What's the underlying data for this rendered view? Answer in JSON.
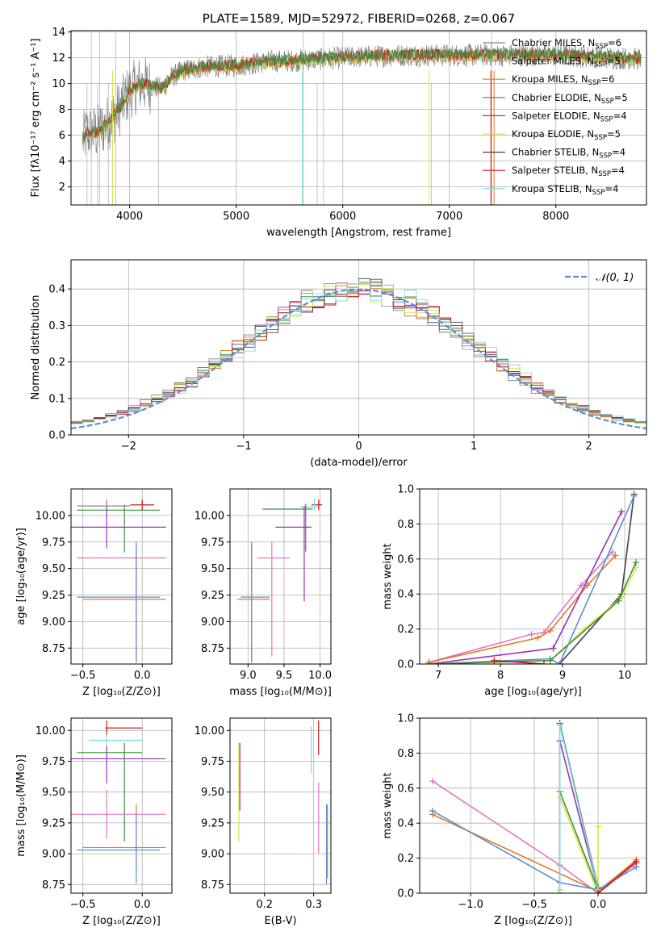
{
  "colors": {
    "chabrier_miles": "#808080",
    "salpeter_miles": "#9e9e9e",
    "kroupa_miles": "#e07b24",
    "chabrier_elodie": "#3f8f3f",
    "salpeter_elodie": "#9b30b8",
    "kroupa_elodie": "#d8e840",
    "chabrier_stelib": "#444444",
    "salpeter_stelib": "#c81818",
    "kroupa_stelib": "#7fdcdc",
    "normal": "#5b8fd6",
    "pink": "#e377c2",
    "blue": "#5b8fd6"
  },
  "chart_data": [
    {
      "id": "spectrum",
      "type": "line",
      "title": "PLATE=1589, MJD=52972, FIBERID=0268, z=0.067",
      "xlabel": "wavelength [Angstrom, rest frame]",
      "ylabel": "Flux [fλ10⁻¹⁷ erg cm⁻² s⁻¹ A⁻¹]",
      "xlim": [
        3450,
        8850
      ],
      "ylim": [
        0.6,
        14.1
      ],
      "xticks": [
        "4000",
        "5000",
        "6000",
        "7000",
        "8000"
      ],
      "yticks": [
        "2",
        "4",
        "6",
        "8",
        "10",
        "12",
        "14"
      ],
      "continuum": {
        "x": [
          3560,
          3600,
          3700,
          3800,
          3900,
          4000,
          4100,
          4200,
          4300,
          4400,
          4500,
          4700,
          5000,
          5300,
          5600,
          6000,
          6500,
          7000,
          7500,
          8000,
          8500,
          8800
        ],
        "y": [
          5.6,
          6.2,
          6.2,
          7.0,
          8.0,
          9.4,
          10.0,
          9.8,
          9.6,
          10.5,
          11.0,
          11.3,
          11.4,
          11.7,
          11.8,
          12.0,
          12.2,
          12.2,
          12.2,
          12.2,
          12.0,
          11.9
        ]
      },
      "legend": {
        "position": "right",
        "entries": [
          {
            "text": "Chabrier MILES, N",
            "sub": "SSP",
            "tail": "=6"
          },
          {
            "text": "Salpeter MILES, N",
            "sub": "SSP",
            "tail": "=5"
          },
          {
            "text": "Kroupa MILES, N",
            "sub": "SSP",
            "tail": "=6"
          },
          {
            "text": "Chabrier ELODIE, N",
            "sub": "SSP",
            "tail": "=5"
          },
          {
            "text": "Salpeter ELODIE, N",
            "sub": "SSP",
            "tail": "=4"
          },
          {
            "text": "Kroupa ELODIE, N",
            "sub": "SSP",
            "tail": "=5"
          },
          {
            "text": "Chabrier STELIB, N",
            "sub": "SSP",
            "tail": "=4"
          },
          {
            "text": "Salpeter STELIB, N",
            "sub": "SSP",
            "tail": "=4"
          },
          {
            "text": "Kroupa STELIB, N",
            "sub": "SSP",
            "tail": "=4"
          }
        ]
      }
    },
    {
      "id": "residuals",
      "type": "line",
      "xlabel": "(data-model)/error",
      "ylabel": "Normed distribution",
      "xlim": [
        -2.5,
        2.5
      ],
      "ylim": [
        0,
        0.48
      ],
      "xticks": [
        "−2",
        "−1",
        "0",
        "1",
        "2"
      ],
      "yticks": [
        "0.0",
        "0.1",
        "0.2",
        "0.3",
        "0.4"
      ],
      "legend": {
        "position": "top-right",
        "label": "𝒩(0, 1)"
      },
      "bin_width": 0.1
    },
    {
      "id": "age_vs_Z",
      "type": "scatter",
      "xlabel": "Z [log₁₀(Z/Z⊙)]",
      "ylabel": "age  [log₁₀(age/yr)]",
      "xlim": [
        -0.6,
        0.25
      ],
      "ylim": [
        8.6,
        10.25
      ],
      "xticks": [
        "−0.5",
        "0.0"
      ],
      "yticks": [
        "8.75",
        "9.00",
        "9.25",
        "9.50",
        "9.75",
        "10.00"
      ],
      "points": [
        {
          "x": -0.3,
          "xerr": [
            0.25,
            0.2
          ],
          "y": 10.09,
          "yerr": [
            0.05,
            0.06
          ],
          "c": "chabrier_miles"
        },
        {
          "x": -0.15,
          "xerr": [
            0.4,
            0.3
          ],
          "y": 10.05,
          "yerr": [
            0.4,
            0.05
          ],
          "c": "chabrier_elodie"
        },
        {
          "x": -0.3,
          "xerr": [
            0.3,
            0.5
          ],
          "y": 9.89,
          "yerr": [
            0.2,
            0.2
          ],
          "c": "salpeter_elodie"
        },
        {
          "x": -0.05,
          "xerr": [
            0.5,
            0.25
          ],
          "y": 9.6,
          "yerr": [
            0.93,
            0.15
          ],
          "c": "pink"
        },
        {
          "x": -0.05,
          "xerr": [
            0.45,
            0.25
          ],
          "y": 9.21,
          "yerr": [
            0.6,
            0.54
          ],
          "c": "kroupa_miles"
        },
        {
          "x": -0.05,
          "xerr": [
            0.5,
            0.2
          ],
          "y": 9.23,
          "yerr": [
            0.6,
            0.5
          ],
          "c": "blue"
        },
        {
          "x": 0.0,
          "xerr": [
            0.1,
            0.1
          ],
          "y": 10.1,
          "yerr": [
            0.05,
            0.05
          ],
          "c": "salpeter_stelib"
        }
      ]
    },
    {
      "id": "age_vs_mass",
      "type": "scatter",
      "xlabel": "mass [log₁₀(M/M⊙)]",
      "xlim": [
        8.75,
        10.15
      ],
      "ylim": [
        8.6,
        10.25
      ],
      "xticks": [
        "9.0",
        "9.5",
        "10.0"
      ],
      "yticks": [
        "8.75",
        "9.00",
        "9.25",
        "9.50",
        "9.75",
        "10.00"
      ],
      "points": [
        {
          "x": 9.98,
          "xerr": [
            0.1,
            0.05
          ],
          "y": 10.1,
          "yerr": [
            0.05,
            0.05
          ],
          "c": "salpeter_stelib"
        },
        {
          "x": 9.92,
          "xerr": [
            0.2,
            0.05
          ],
          "y": 10.08,
          "yerr": [
            0.04,
            0.08
          ],
          "c": "kroupa_stelib"
        },
        {
          "x": 9.8,
          "xerr": [
            0.6,
            0.1
          ],
          "y": 10.06,
          "yerr": [
            0.4,
            0.05
          ],
          "c": "chabrier_elodie"
        },
        {
          "x": 9.78,
          "xerr": [
            0.4,
            0.1
          ],
          "y": 9.89,
          "yerr": [
            0.7,
            0.2
          ],
          "c": "salpeter_elodie"
        },
        {
          "x": 9.33,
          "xerr": [
            0.2,
            0.25
          ],
          "y": 9.6,
          "yerr": [
            0.93,
            0.15
          ],
          "c": "pink"
        },
        {
          "x": 9.05,
          "xerr": [
            0.2,
            0.25
          ],
          "y": 9.21,
          "yerr": [
            0.6,
            0.54
          ],
          "c": "kroupa_miles"
        },
        {
          "x": 9.05,
          "xerr": [
            0.15,
            0.25
          ],
          "y": 9.23,
          "yerr": [
            0.6,
            0.5
          ],
          "c": "blue"
        }
      ]
    },
    {
      "id": "mw_vs_age",
      "type": "line",
      "xlabel": "age  [log₁₀(age/yr)]",
      "ylabel": "mass weight",
      "xlim": [
        6.7,
        10.35
      ],
      "ylim": [
        0,
        1.0
      ],
      "xticks": [
        "7",
        "8",
        "9",
        "10"
      ],
      "yticks": [
        "0.0",
        "0.2",
        "0.4",
        "0.6",
        "0.8",
        "1.0"
      ],
      "series": [
        {
          "c": "pink",
          "x": [
            6.85,
            8.5,
            8.7,
            9.3,
            9.8
          ],
          "y": [
            0.01,
            0.17,
            0.18,
            0.45,
            0.64
          ]
        },
        {
          "c": "kroupa_miles",
          "x": [
            6.85,
            8.6,
            8.8,
            9.4,
            9.85
          ],
          "y": [
            0.01,
            0.15,
            0.19,
            0.45,
            0.62
          ]
        },
        {
          "c": "salpeter_elodie",
          "x": [
            6.85,
            8.85,
            9.95
          ],
          "y": [
            0.0,
            0.09,
            0.87
          ]
        },
        {
          "c": "chabrier_stelib",
          "x": [
            8.95,
            9.95,
            10.15
          ],
          "y": [
            0.0,
            0.4,
            0.97
          ]
        },
        {
          "c": "blue",
          "x": [
            6.85,
            8.8,
            8.95,
            10.15
          ],
          "y": [
            0.0,
            0.03,
            0.0,
            0.96
          ]
        },
        {
          "c": "kroupa_elodie",
          "x": [
            6.85,
            8.8,
            9.35,
            9.95,
            10.18
          ],
          "y": [
            0.0,
            0.02,
            0.2,
            0.38,
            0.55
          ]
        },
        {
          "c": "chabrier_elodie",
          "x": [
            6.85,
            8.8,
            9.9,
            10.18
          ],
          "y": [
            0.0,
            0.02,
            0.36,
            0.58
          ]
        },
        {
          "c": "salpeter_stelib",
          "x": [
            7.9,
            8.7
          ],
          "y": [
            0.02,
            0.0
          ]
        }
      ]
    },
    {
      "id": "mass_vs_Z",
      "type": "scatter",
      "xlabel": "Z [log₁₀(Z/Z⊙)]",
      "ylabel": "mass [log₁₀(M/M⊙)]",
      "xlim": [
        -0.6,
        0.25
      ],
      "ylim": [
        8.68,
        10.1
      ],
      "xticks": [
        "−0.5",
        "0.0"
      ],
      "yticks": [
        "8.75",
        "9.00",
        "9.25",
        "9.50",
        "9.75",
        "10.00"
      ],
      "points": [
        {
          "x": -0.3,
          "xerr": [
            0.01,
            0.3
          ],
          "y": 10.02,
          "yerr": [
            0.07,
            0.06
          ],
          "c": "salpeter_stelib"
        },
        {
          "x": -0.3,
          "xerr": [
            0.15,
            0.3
          ],
          "y": 9.92,
          "yerr": [
            0.05,
            0.05
          ],
          "c": "kroupa_stelib"
        },
        {
          "x": -0.15,
          "xerr": [
            0.4,
            0.15
          ],
          "y": 9.82,
          "yerr": [
            0.72,
            0.08
          ],
          "c": "chabrier_elodie"
        },
        {
          "x": -0.3,
          "xerr": [
            0.3,
            0.5
          ],
          "y": 9.77,
          "yerr": [
            0.2,
            0.1
          ],
          "c": "salpeter_elodie"
        },
        {
          "x": -0.3,
          "xerr": [
            0.3,
            0.5
          ],
          "y": 9.32,
          "yerr": [
            0.2,
            0.2
          ],
          "c": "pink"
        },
        {
          "x": -0.05,
          "xerr": [
            0.45,
            0.25
          ],
          "y": 9.05,
          "yerr": [
            0.2,
            0.35
          ],
          "c": "kroupa_miles"
        },
        {
          "x": -0.05,
          "xerr": [
            0.5,
            0.2
          ],
          "y": 9.03,
          "yerr": [
            0.27,
            0.3
          ],
          "c": "blue"
        }
      ]
    },
    {
      "id": "mass_vs_ebv",
      "type": "scatter",
      "xlabel": "E(B-V)",
      "xlim": [
        0.13,
        0.335
      ],
      "ylim": [
        8.68,
        10.1
      ],
      "xticks": [
        "0.2",
        "0.3"
      ],
      "yticks": [
        "8.75",
        "9.00",
        "9.25",
        "9.50",
        "9.75",
        "10.00"
      ],
      "points": [
        {
          "x": 0.148,
          "y": 9.55,
          "yerr": [
            0.45,
            0.35
          ],
          "c": "kroupa_elodie"
        },
        {
          "x": 0.15,
          "y": 9.6,
          "yerr": [
            0.25,
            0.3
          ],
          "c": "salpeter_elodie"
        },
        {
          "x": 0.295,
          "y": 9.85,
          "yerr": [
            0.2,
            0.18
          ],
          "c": "kroupa_stelib"
        },
        {
          "x": 0.31,
          "y": 9.92,
          "yerr": [
            0.12,
            0.16
          ],
          "c": "salpeter_stelib"
        },
        {
          "x": 0.31,
          "y": 9.35,
          "yerr": [
            0.35,
            0.23
          ],
          "c": "pink"
        },
        {
          "x": 0.328,
          "y": 9.1,
          "yerr": [
            0.3,
            0.3
          ],
          "c": "kroupa_miles"
        },
        {
          "x": 0.326,
          "y": 9.1,
          "yerr": [
            0.35,
            0.3
          ],
          "c": "blue"
        }
      ]
    },
    {
      "id": "mw_vs_Z",
      "type": "line",
      "xlabel": "Z [log₁₀(Z/Z⊙)]",
      "ylabel": "mass weight",
      "xlim": [
        -1.4,
        0.38
      ],
      "ylim": [
        0,
        1.0
      ],
      "xticks": [
        "−1.0",
        "−0.5",
        "0.0"
      ],
      "yticks": [
        "0.0",
        "0.2",
        "0.4",
        "0.6",
        "0.8",
        "1.0"
      ],
      "series": [
        {
          "c": "pink",
          "x": [
            -1.3,
            -0.3,
            0.0,
            0.3
          ],
          "y": [
            0.64,
            0.16,
            0.0,
            0.17
          ]
        },
        {
          "c": "kroupa_miles",
          "x": [
            -1.3,
            0.0,
            0.3
          ],
          "y": [
            0.45,
            0.01,
            0.19
          ]
        },
        {
          "c": "blue",
          "x": [
            -1.3,
            -0.3,
            0.0,
            0.3
          ],
          "y": [
            0.47,
            0.06,
            0.02,
            0.15
          ]
        },
        {
          "c": "salpeter_elodie",
          "x": [
            -0.3,
            -0.3,
            0.0,
            0.0
          ],
          "y": [
            0.02,
            0.87,
            0.02,
            0.0
          ]
        },
        {
          "c": "chabrier_elodie",
          "x": [
            -0.3,
            -0.3,
            0.0
          ],
          "y": [
            0.0,
            0.58,
            0.02
          ]
        },
        {
          "c": "kroupa_elodie",
          "x": [
            -0.3,
            -0.3,
            0.0,
            0.0
          ],
          "y": [
            0.02,
            0.55,
            0.0,
            0.38
          ]
        },
        {
          "c": "chabrier_stelib",
          "x": [
            -0.3,
            -0.3,
            0.0
          ],
          "y": [
            0.0,
            0.97,
            0.03
          ]
        },
        {
          "c": "kroupa_stelib",
          "x": [
            -0.3,
            -0.3,
            0.0
          ],
          "y": [
            0.0,
            0.96,
            0.02
          ]
        },
        {
          "c": "salpeter_stelib",
          "x": [
            0.0,
            0.3
          ],
          "y": [
            0.0,
            0.18
          ]
        }
      ]
    }
  ]
}
